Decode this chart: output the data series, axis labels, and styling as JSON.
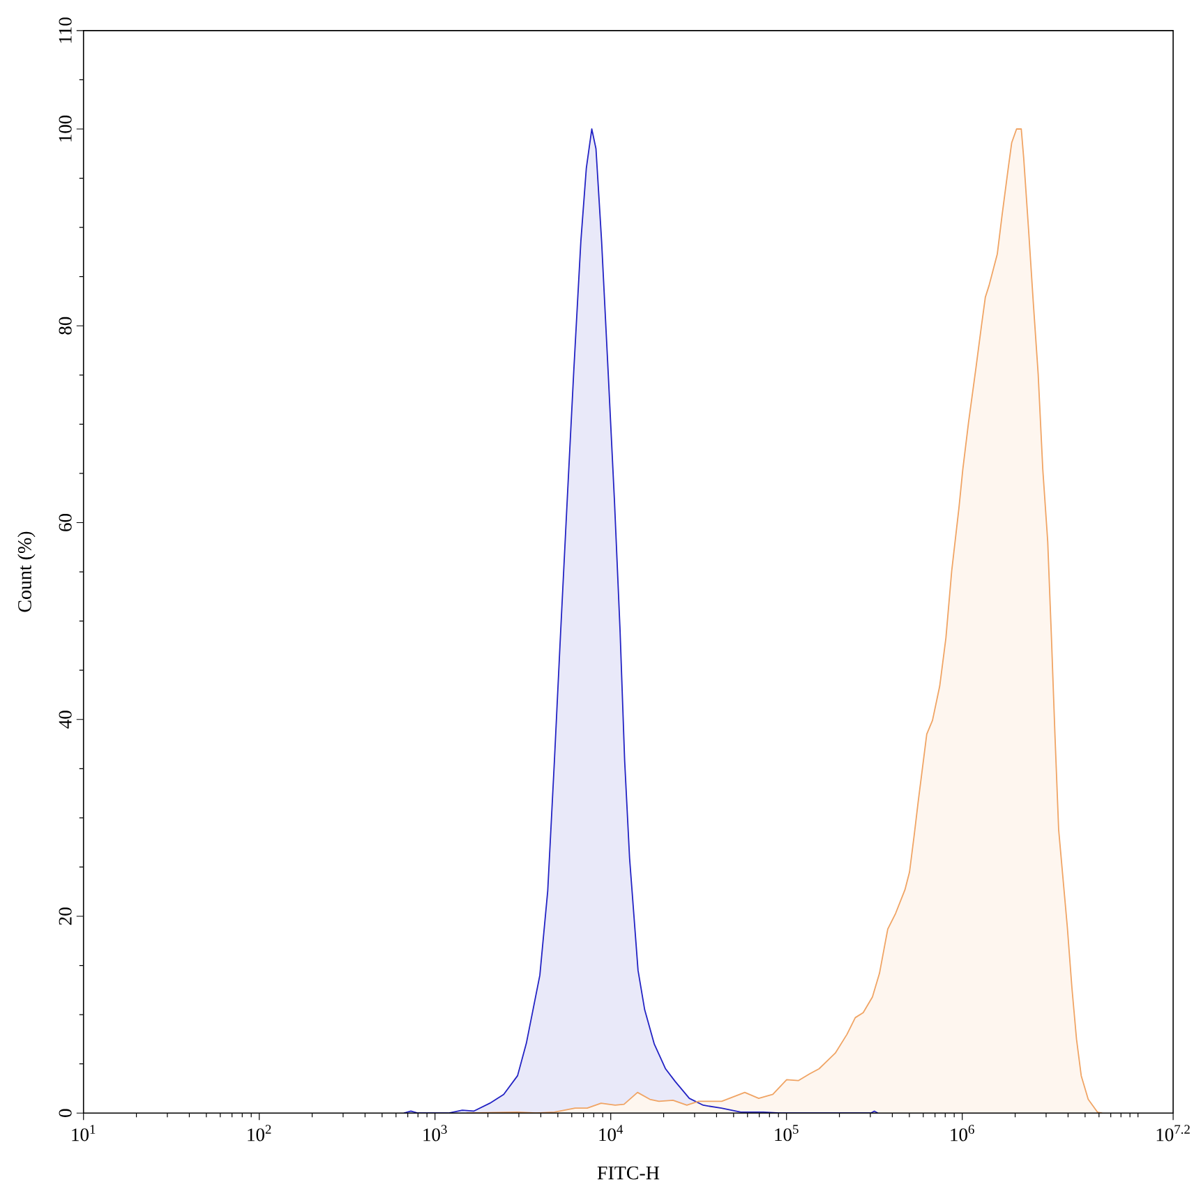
{
  "chart_data": {
    "type": "area",
    "log": "x",
    "xlabel": "FITC-H",
    "ylabel": "Count (%)",
    "xlim": [
      10,
      15848932
    ],
    "ylim": [
      0,
      110
    ],
    "xticks": [
      {
        "value": 10,
        "label": "10$^{1}$"
      },
      {
        "value": 20,
        "label": null
      },
      {
        "value": 30,
        "label": null
      },
      {
        "value": 40,
        "label": null
      },
      {
        "value": 50,
        "label": null
      },
      {
        "value": 60,
        "label": null
      },
      {
        "value": 70,
        "label": null
      },
      {
        "value": 80,
        "label": null
      },
      {
        "value": 90,
        "label": null
      },
      {
        "value": 100,
        "label": "10$^{2}$"
      },
      {
        "value": 200,
        "label": null
      },
      {
        "value": 300,
        "label": null
      },
      {
        "value": 400,
        "label": null
      },
      {
        "value": 500,
        "label": null
      },
      {
        "value": 600,
        "label": null
      },
      {
        "value": 700,
        "label": null
      },
      {
        "value": 800,
        "label": null
      },
      {
        "value": 900,
        "label": null
      },
      {
        "value": 1000,
        "label": "10$^{3}$"
      },
      {
        "value": 2000,
        "label": null
      },
      {
        "value": 3000,
        "label": null
      },
      {
        "value": 4000,
        "label": null
      },
      {
        "value": 5000,
        "label": null
      },
      {
        "value": 6000,
        "label": null
      },
      {
        "value": 7000,
        "label": null
      },
      {
        "value": 8000,
        "label": null
      },
      {
        "value": 9000,
        "label": null
      },
      {
        "value": 10000,
        "label": "10$^{4}$"
      },
      {
        "value": 20000,
        "label": null
      },
      {
        "value": 30000,
        "label": null
      },
      {
        "value": 40000,
        "label": null
      },
      {
        "value": 50000,
        "label": null
      },
      {
        "value": 60000,
        "label": null
      },
      {
        "value": 70000,
        "label": null
      },
      {
        "value": 80000,
        "label": null
      },
      {
        "value": 90000,
        "label": null
      },
      {
        "value": 100000,
        "label": "10$^{5}$"
      },
      {
        "value": 200000,
        "label": null
      },
      {
        "value": 300000,
        "label": null
      },
      {
        "value": 400000,
        "label": null
      },
      {
        "value": 500000,
        "label": null
      },
      {
        "value": 600000,
        "label": null
      },
      {
        "value": 700000,
        "label": null
      },
      {
        "value": 800000,
        "label": null
      },
      {
        "value": 900000,
        "label": null
      },
      {
        "value": 1000000,
        "label": "10$^{6}$"
      },
      {
        "value": 2000000,
        "label": null
      },
      {
        "value": 3000000,
        "label": null
      },
      {
        "value": 4000000,
        "label": null
      },
      {
        "value": 5000000,
        "label": null
      },
      {
        "value": 6000000,
        "label": null
      },
      {
        "value": 7000000,
        "label": null
      },
      {
        "value": 8000000,
        "label": null
      },
      {
        "value": 9000000,
        "label": null
      },
      {
        "value": 10000000,
        "label": null
      },
      {
        "value": 15848932,
        "label": "10$^{7.2}$"
      }
    ],
    "yticks": [
      0,
      {
        "value": 5,
        "label": null
      },
      {
        "value": 10,
        "label": null
      },
      {
        "value": 15,
        "label": null
      },
      20,
      {
        "value": 25,
        "label": null
      },
      {
        "value": 30,
        "label": null
      },
      {
        "value": 35,
        "label": null
      },
      40,
      {
        "value": 45,
        "label": null
      },
      {
        "value": 50,
        "label": null
      },
      {
        "value": 55,
        "label": null
      },
      60,
      {
        "value": 65,
        "label": null
      },
      {
        "value": 70,
        "label": null
      },
      {
        "value": 75,
        "label": null
      },
      80,
      {
        "value": 85,
        "label": null
      },
      {
        "value": 90,
        "label": null
      },
      {
        "value": 95,
        "label": null
      },
      100,
      {
        "value": 105,
        "label": null
      },
      110
    ],
    "series": [
      {
        "color": "#2222c4",
        "x": [
          665,
          729,
          800,
          1190,
          1430,
          1660,
          2050,
          2460,
          2950,
          3310,
          3950,
          4380,
          4780,
          5190,
          5650,
          6160,
          6760,
          7260,
          7800,
          8240,
          8870,
          9660,
          10500,
          11300,
          12000,
          12800,
          14300,
          15600,
          17700,
          20500,
          23300,
          28000,
          33600,
          42600,
          55000,
          73600,
          91600,
          302000,
          316000,
          331000
        ],
        "values": [
          0,
          0.2,
          0,
          0,
          0.3,
          0.2,
          1.0,
          1.9,
          3.8,
          7.1,
          14.0,
          22.6,
          35.8,
          49.0,
          62.2,
          75.4,
          88.6,
          96,
          100,
          98,
          88.6,
          75.4,
          62.2,
          49.0,
          35.8,
          25.9,
          14.5,
          10.5,
          7.0,
          4.5,
          3.2,
          1.5,
          0.8,
          0.5,
          0.1,
          0.1,
          0,
          0,
          0.2,
          0
        ]
      },
      {
        "color": "#f0a464",
        "x": [
          1510,
          2950,
          3770,
          4780,
          6270,
          7350,
          8810,
          10600,
          11900,
          14200,
          16700,
          18800,
          22600,
          27100,
          31600,
          42800,
          57900,
          69500,
          83600,
          100200,
          116700,
          135900,
          153200,
          189600,
          220800,
          246200,
          273100,
          308300,
          338100,
          376900,
          417800,
          472100,
          501200,
          533300,
          561000,
          628100,
          677000,
          744500,
          807500,
          871000,
          957700,
          1007000,
          1086000,
          1194000,
          1286000,
          1353000,
          1421000,
          1583000,
          1684000,
          1829000,
          1911000,
          2037000,
          2167000,
          2236000,
          2384000,
          2536000,
          2704000,
          2873000,
          3064000,
          3218000,
          3368000,
          3537000,
          3963000,
          4209000,
          4469000,
          4753000,
          5209000,
          5876000,
          6250000
        ],
        "values": [
          0,
          0.1,
          0,
          0.1,
          0.5,
          0.5,
          1.0,
          0.8,
          0.9,
          2.1,
          1.4,
          1.2,
          1.3,
          0.8,
          1.2,
          1.2,
          2.1,
          1.5,
          1.9,
          3.4,
          3.3,
          4.0,
          4.5,
          6.1,
          8.0,
          9.7,
          10.2,
          11.8,
          14.2,
          18.7,
          20.3,
          22.7,
          24.5,
          28.3,
          31.6,
          38.5,
          39.9,
          43.4,
          48.3,
          55.1,
          61.5,
          65.4,
          70.2,
          75.6,
          80.0,
          82.9,
          84.1,
          87.3,
          91.2,
          96.1,
          98.6,
          100,
          100,
          97.1,
          89.8,
          82.4,
          75.1,
          65.4,
          58.1,
          48.3,
          38.5,
          28.8,
          18.9,
          12.7,
          7.5,
          3.8,
          1.4,
          0.1,
          0
        ]
      }
    ]
  }
}
